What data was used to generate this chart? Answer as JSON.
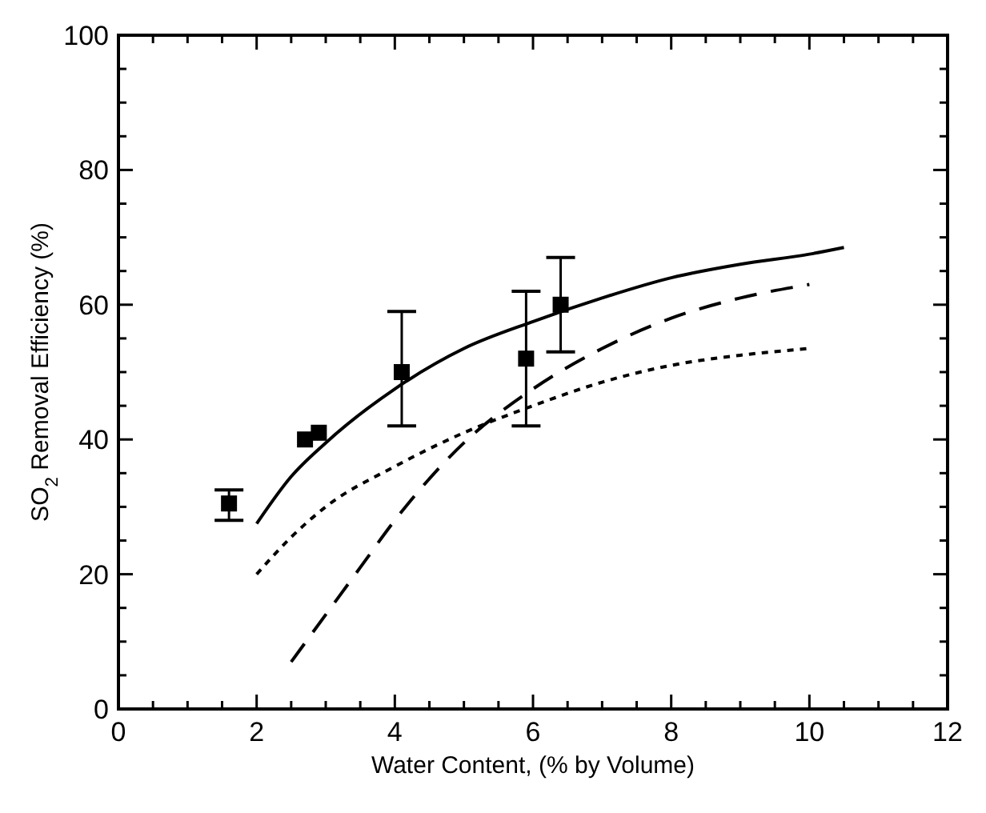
{
  "chart_data": {
    "type": "scatter",
    "xlabel": "Water Content, (% by Volume)",
    "ylabel": "SO$_{2}$ Removal Efficiency (%)",
    "xlim": [
      0,
      12
    ],
    "ylim": [
      0,
      100
    ],
    "xticks": [
      0,
      {
        "value": 0.5,
        "label": null
      },
      {
        "value": 1,
        "label": null
      },
      {
        "value": 1.5,
        "label": null
      },
      2,
      {
        "value": 2.5,
        "label": null
      },
      {
        "value": 3,
        "label": null
      },
      {
        "value": 3.5,
        "label": null
      },
      4,
      {
        "value": 4.5,
        "label": null
      },
      {
        "value": 5,
        "label": null
      },
      {
        "value": 5.5,
        "label": null
      },
      6,
      {
        "value": 6.5,
        "label": null
      },
      {
        "value": 7,
        "label": null
      },
      {
        "value": 7.5,
        "label": null
      },
      8,
      {
        "value": 8.5,
        "label": null
      },
      {
        "value": 9,
        "label": null
      },
      {
        "value": 9.5,
        "label": null
      },
      10,
      {
        "value": 10.5,
        "label": null
      },
      {
        "value": 11,
        "label": null
      },
      {
        "value": 11.5,
        "label": null
      },
      12
    ],
    "yticks": [
      0,
      {
        "value": 5,
        "label": null
      },
      {
        "value": 10,
        "label": null
      },
      {
        "value": 15,
        "label": null
      },
      20,
      {
        "value": 25,
        "label": null
      },
      {
        "value": 30,
        "label": null
      },
      {
        "value": 35,
        "label": null
      },
      40,
      {
        "value": 45,
        "label": null
      },
      {
        "value": 50,
        "label": null
      },
      {
        "value": 55,
        "label": null
      },
      60,
      {
        "value": 65,
        "label": null
      },
      {
        "value": 70,
        "label": null
      },
      {
        "value": 75,
        "label": null
      },
      80,
      {
        "value": 85,
        "label": null
      },
      {
        "value": 90,
        "label": null
      },
      {
        "value": 95,
        "label": null
      },
      100
    ],
    "grid": false,
    "series": [
      {
        "color": "#000000",
        "marker": "square",
        "x": [
          1.6,
          2.7,
          2.9,
          4.1,
          5.9,
          6.4
        ],
        "values": [
          30.5,
          40,
          41,
          50,
          52,
          60
        ],
        "errors": [
          [
            28,
            32.5
          ],
          null,
          null,
          [
            42,
            59
          ],
          [
            42,
            62
          ],
          [
            53,
            67
          ]
        ]
      },
      {
        "type": "line",
        "color": "#000000",
        "line_style": "solid",
        "x": [
          2,
          2.5,
          3,
          4,
          5,
          6,
          7,
          8,
          9,
          10,
          10.5
        ],
        "values": [
          27.5,
          34.5,
          39.5,
          47.5,
          53.5,
          57.5,
          61,
          64,
          66,
          67.5,
          68.5
        ]
      },
      {
        "type": "line",
        "color": "#000000",
        "line_style": "dotted",
        "x": [
          2,
          2.5,
          3,
          4,
          5,
          6,
          7,
          8,
          9,
          10
        ],
        "values": [
          20,
          25.5,
          30,
          36,
          41,
          45,
          48.5,
          51,
          52.5,
          53.5
        ]
      },
      {
        "type": "line",
        "color": "#000000",
        "line_style": "dashed",
        "x": [
          2.5,
          3,
          3.5,
          4,
          5,
          6,
          7,
          8,
          9,
          10
        ],
        "values": [
          7,
          14,
          21,
          28,
          39.5,
          47.5,
          53.5,
          58,
          61,
          63
        ]
      }
    ]
  }
}
